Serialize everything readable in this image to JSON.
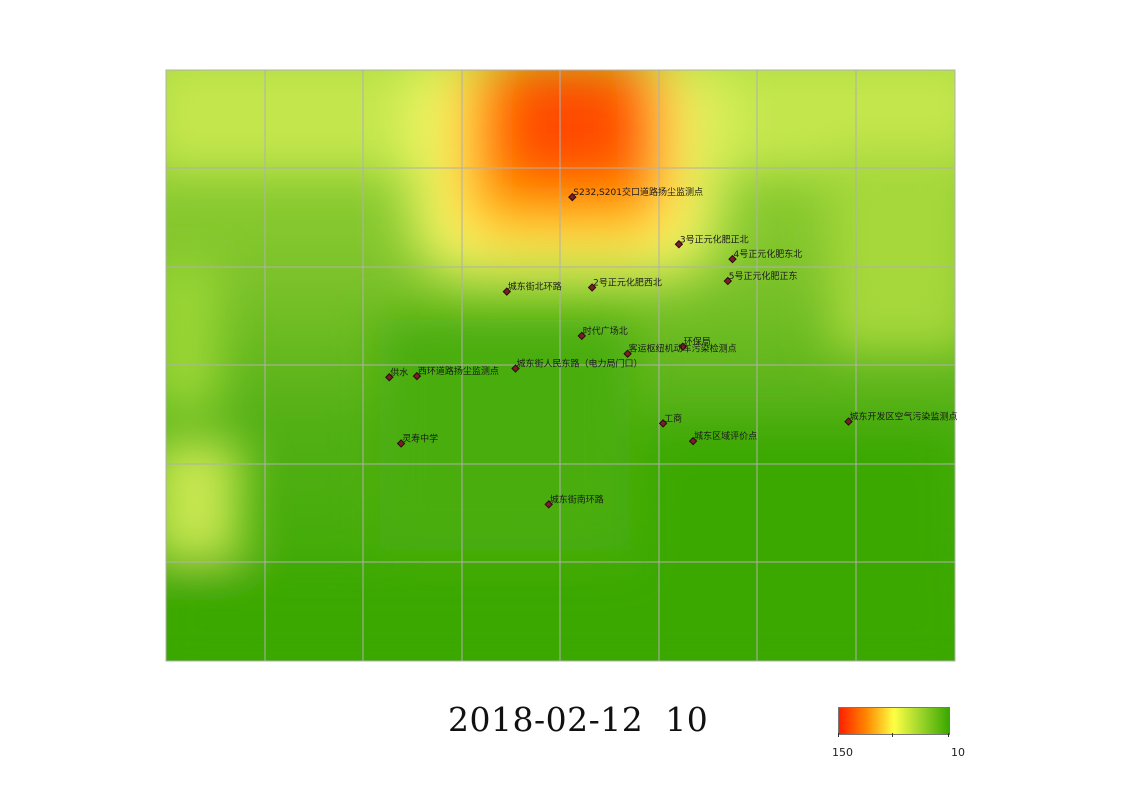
{
  "map": {
    "stations": [
      {
        "name": "S232,S201交口道路扬尘监测点",
        "lng": 0.515,
        "lat": 0.785
      },
      {
        "name": "3号正元化肥正北",
        "lng": 0.65,
        "lat": 0.705
      },
      {
        "name": "4号正元化肥东北",
        "lng": 0.718,
        "lat": 0.68
      },
      {
        "name": "5号正元化肥正东",
        "lng": 0.712,
        "lat": 0.643
      },
      {
        "name": "城东街北环路",
        "lng": 0.432,
        "lat": 0.625
      },
      {
        "name": "2号正元化肥西北",
        "lng": 0.54,
        "lat": 0.632
      },
      {
        "name": "时代广场北",
        "lng": 0.527,
        "lat": 0.55
      },
      {
        "name": "环保局",
        "lng": 0.655,
        "lat": 0.532
      },
      {
        "name": "客运枢纽机动车污染检测点",
        "lng": 0.585,
        "lat": 0.52
      },
      {
        "name": "城东街人民东路（电力局门口）",
        "lng": 0.443,
        "lat": 0.495
      },
      {
        "name": "供水",
        "lng": 0.283,
        "lat": 0.48
      },
      {
        "name": "西环道路扬尘监测点",
        "lng": 0.318,
        "lat": 0.482
      },
      {
        "name": "工商",
        "lng": 0.63,
        "lat": 0.402
      },
      {
        "name": "城东开发区空气污染监测点",
        "lng": 0.865,
        "lat": 0.405
      },
      {
        "name": "灵寿中学",
        "lng": 0.298,
        "lat": 0.368
      },
      {
        "name": "城东区域评价点",
        "lng": 0.668,
        "lat": 0.372
      },
      {
        "name": "城东街南环路",
        "lng": 0.485,
        "lat": 0.265
      }
    ],
    "colors": {
      "high": "#ff1e00",
      "mid": "#ffff44",
      "low": "#3aa800",
      "grid": "#b0b0b0"
    }
  },
  "timestamp": "2018-02-12  10",
  "legend": {
    "max_label": "150",
    "min_label": "10"
  }
}
